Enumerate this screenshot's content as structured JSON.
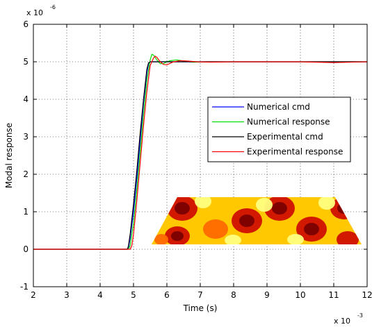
{
  "chart_data": {
    "type": "line",
    "xlabel": "Time (s)",
    "ylabel": "Modal response",
    "x_exponent_label": "x 10",
    "x_exponent": "-3",
    "y_exponent_label": "x 10",
    "y_exponent": "-6",
    "xlim": [
      2,
      12
    ],
    "ylim": [
      -1,
      6
    ],
    "xticks": [
      "2",
      "3",
      "4",
      "5",
      "6",
      "7",
      "8",
      "9",
      "10",
      "11",
      "12"
    ],
    "yticks": [
      "-1",
      "0",
      "1",
      "2",
      "3",
      "4",
      "5",
      "6"
    ],
    "grid": true,
    "legend_position": "right",
    "series": [
      {
        "name": "Numerical cmd",
        "color": "#0000ff",
        "x": [
          2,
          4.8,
          4.85,
          4.9,
          5.0,
          5.1,
          5.2,
          5.3,
          5.4,
          5.45,
          5.5,
          6,
          7,
          8,
          9,
          10,
          11,
          12
        ],
        "y": [
          0,
          0,
          0.05,
          0.3,
          1.0,
          1.9,
          2.9,
          3.9,
          4.7,
          4.95,
          5.0,
          5.0,
          5.0,
          5.0,
          5.0,
          5.0,
          5.0,
          5.0
        ]
      },
      {
        "name": "Numerical response",
        "color": "#00e000",
        "x": [
          2,
          4.85,
          4.9,
          5.0,
          5.1,
          5.2,
          5.3,
          5.4,
          5.5,
          5.55,
          5.6,
          5.7,
          5.8,
          5.9,
          6.0,
          6.1,
          6.3,
          6.5,
          6.8,
          7.2,
          8,
          9,
          10,
          11,
          12
        ],
        "y": [
          0,
          0,
          0.1,
          0.7,
          1.6,
          2.6,
          3.6,
          4.5,
          5.05,
          5.2,
          5.18,
          5.05,
          4.95,
          4.95,
          5.0,
          5.03,
          5.05,
          5.02,
          4.99,
          5.0,
          5.0,
          5.0,
          5.0,
          5.0,
          5.0
        ]
      },
      {
        "name": "Experimental cmd",
        "color": "#000000",
        "x": [
          2,
          4.82,
          4.85,
          4.9,
          5.0,
          5.1,
          5.2,
          5.3,
          5.4,
          5.45,
          5.5,
          6,
          7,
          8,
          9,
          10,
          11,
          12
        ],
        "y": [
          0,
          0,
          0.1,
          0.4,
          1.2,
          2.1,
          3.1,
          4.0,
          4.8,
          4.97,
          5.0,
          5.0,
          5.0,
          5.0,
          5.0,
          5.0,
          5.0,
          5.0
        ]
      },
      {
        "name": "Experimental response",
        "color": "#ff0000",
        "x": [
          2,
          4.9,
          4.95,
          5.0,
          5.1,
          5.2,
          5.3,
          5.4,
          5.5,
          5.6,
          5.65,
          5.7,
          5.8,
          5.9,
          6.0,
          6.1,
          6.2,
          6.4,
          6.6,
          6.9,
          7.3,
          8,
          9,
          10,
          11,
          12
        ],
        "y": [
          0,
          0,
          0.1,
          0.4,
          1.3,
          2.3,
          3.3,
          4.2,
          4.9,
          5.1,
          5.15,
          5.12,
          5.0,
          4.93,
          4.92,
          4.96,
          5.0,
          5.03,
          5.02,
          5.0,
          4.99,
          5.0,
          5.0,
          5.0,
          4.98,
          5.0
        ]
      }
    ],
    "inset": {
      "description_icon": "mode-shape-heatmap",
      "colors": [
        "#7a0000",
        "#d01000",
        "#ff6a00",
        "#ffc800",
        "#ffff80"
      ]
    }
  }
}
